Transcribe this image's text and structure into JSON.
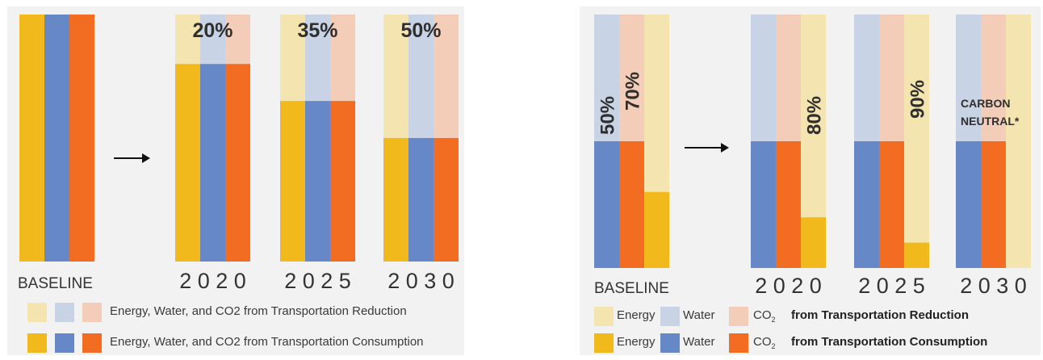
{
  "colors": {
    "energy": "#f2b91c",
    "water": "#6688c6",
    "co2": "#f26d21",
    "energy_light": "#f3e4b0",
    "water_light": "#c8d3e6",
    "co2_light": "#f3cdb7",
    "text_dark": "#2f2f2f"
  },
  "left": {
    "legend": {
      "reduction": "Energy, Water, and CO2 from Transportation Reduction",
      "consumption": "Energy, Water, and CO2 from Transportation Consumption"
    },
    "arrow_icon": "right-arrow-icon"
  },
  "right": {
    "legend": {
      "energy": "Energy",
      "water": "Water",
      "co2": "CO",
      "co2_sub": "2",
      "reduction": "from Transportation Reduction",
      "consumption": "from Transportation Consumption"
    },
    "arrow_icon": "right-arrow-icon"
  },
  "chart_data": [
    {
      "type": "bar",
      "stacked": true,
      "categories": [
        "BASELINE",
        "2 0 2 0",
        "2 0 2 5",
        "2 0 3 0"
      ],
      "series_names": [
        "Energy",
        "Water",
        "CO2 from Transportation"
      ],
      "consumption_fraction": [
        1.0,
        0.8,
        0.65,
        0.5
      ],
      "reduction_fraction": [
        0.0,
        0.2,
        0.35,
        0.5
      ],
      "labels": [
        "",
        "20%",
        "35%",
        "50%"
      ]
    },
    {
      "type": "bar",
      "stacked": true,
      "categories": [
        "BASELINE",
        "2 0 2 0",
        "2 0 2 5",
        "2 0 3 0"
      ],
      "series_names": [
        "Energy",
        "Water",
        "CO2 from Transportation"
      ],
      "water_co2_reduction_fraction": [
        0.5,
        0.5,
        0.5,
        0.5
      ],
      "energy_reduction_fraction": [
        0.7,
        0.8,
        0.9,
        1.0
      ],
      "labels": [
        "50%",
        "70%",
        "80%",
        "90%"
      ],
      "carbon_label_line1": "CARBON",
      "carbon_label_line2": "NEUTRAL*"
    }
  ]
}
